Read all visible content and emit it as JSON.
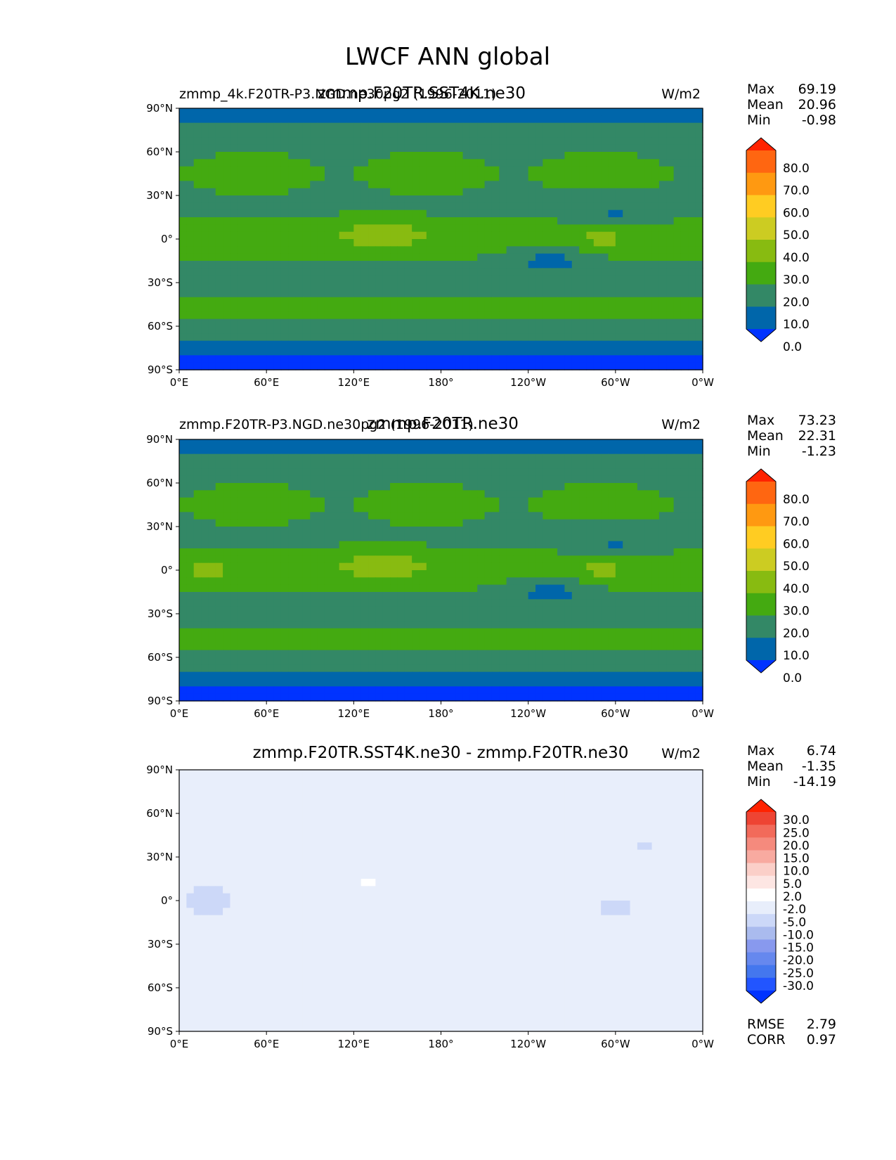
{
  "figure": {
    "title": "LWCF ANN global"
  },
  "axes_ticks": {
    "lat": [
      "90°N",
      "60°N",
      "30°N",
      "0°",
      "30°S",
      "60°S",
      "90°S"
    ],
    "lon": [
      "0°E",
      "60°E",
      "120°E",
      "180°",
      "120°W",
      "60°W",
      "0°W"
    ]
  },
  "colors": {
    "test": [
      "#0033ff",
      "#0066aa",
      "#338866",
      "#44aa11",
      "#88bb11",
      "#cccc22",
      "#ffcc22",
      "#ff9911",
      "#ff6611",
      "#ff2200"
    ],
    "diff": [
      "#0033ff",
      "#2255ff",
      "#4477ee",
      "#6688ee",
      "#8899ee",
      "#aabbee",
      "#ccd8f8",
      "#e8eefb",
      "#ffffff",
      "#fde6e3",
      "#fbcfc8",
      "#f8aaa0",
      "#f58a7d",
      "#f26a5a",
      "#ee4433",
      "#ff2200"
    ]
  },
  "chart_data": [
    {
      "type": "heatmap",
      "subplot": "test",
      "title_left": "zmmp_4k.F20TR-P3.NGD.ne30pg2 (1996-2011)",
      "title_center": "zmmp.F20TR.SST4K.ne30",
      "title_right": "W/m2",
      "stats": [
        {
          "label": "Max",
          "value": "69.19"
        },
        {
          "label": "Mean",
          "value": "20.96"
        },
        {
          "label": "Min",
          "value": "-0.98"
        }
      ],
      "colorbar_levels": [
        "80.0",
        "70.0",
        "60.0",
        "50.0",
        "40.0",
        "30.0",
        "20.0",
        "10.0",
        "0.0"
      ],
      "lat_range": [
        -90,
        90
      ],
      "lon_range": [
        0,
        360
      ]
    },
    {
      "type": "heatmap",
      "subplot": "reference",
      "title_left": "zmmp.F20TR-P3.NGD.ne30pg2 (1996-2011)",
      "title_center": "zmmp.F20TR.ne30",
      "title_right": "W/m2",
      "stats": [
        {
          "label": "Max",
          "value": "73.23"
        },
        {
          "label": "Mean",
          "value": "22.31"
        },
        {
          "label": "Min",
          "value": "-1.23"
        }
      ],
      "colorbar_levels": [
        "80.0",
        "70.0",
        "60.0",
        "50.0",
        "40.0",
        "30.0",
        "20.0",
        "10.0",
        "0.0"
      ],
      "lat_range": [
        -90,
        90
      ],
      "lon_range": [
        0,
        360
      ]
    },
    {
      "type": "heatmap",
      "subplot": "difference",
      "title_left": "",
      "title_center": "zmmp.F20TR.SST4K.ne30 - zmmp.F20TR.ne30",
      "title_right": "W/m2",
      "stats": [
        {
          "label": "Max",
          "value": "6.74"
        },
        {
          "label": "Mean",
          "value": "-1.35"
        },
        {
          "label": "Min",
          "value": "-14.19"
        }
      ],
      "colorbar_levels": [
        "30.0",
        "25.0",
        "20.0",
        "15.0",
        "10.0",
        "5.0",
        "2.0",
        "-2.0",
        "-5.0",
        "-10.0",
        "-15.0",
        "-20.0",
        "-25.0",
        "-30.0"
      ],
      "bottom_stats": [
        {
          "label": "RMSE",
          "value": "2.79"
        },
        {
          "label": "CORR",
          "value": "0.97"
        }
      ],
      "lat_range": [
        -90,
        90
      ],
      "lon_range": [
        0,
        360
      ]
    }
  ]
}
